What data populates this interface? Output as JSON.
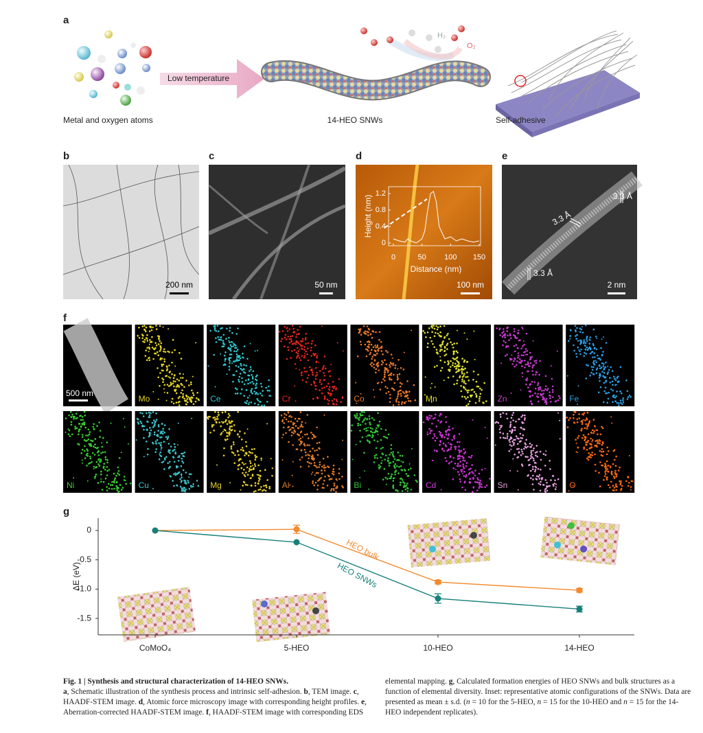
{
  "panel_labels": [
    "a",
    "b",
    "c",
    "d",
    "e",
    "f",
    "g"
  ],
  "panel_a": {
    "atoms_label": "Metal and oxygen atoms",
    "arrow_label": "Low temperature",
    "wire_label": "14-HEO SNWs",
    "adhesive_label": "Self-adhesive",
    "h2": "H₂",
    "o2": "O₂"
  },
  "scale_bars": {
    "b": "200 nm",
    "c": "50 nm",
    "d": "100 nm",
    "e": "2 nm",
    "f": "500 nm"
  },
  "panel_e_spacings": [
    "3.3 Å",
    "3.3 Å",
    "3.3 Å"
  ],
  "eds_maps": [
    {
      "label": "Mo",
      "color": "#e6d61e"
    },
    {
      "label": "Ce",
      "color": "#2ec8d0"
    },
    {
      "label": "Cr",
      "color": "#e8231e"
    },
    {
      "label": "Co",
      "color": "#e8782a"
    },
    {
      "label": "Mn",
      "color": "#e0e030"
    },
    {
      "label": "Zn",
      "color": "#c83ad0"
    },
    {
      "label": "Fe",
      "color": "#2aa0e6"
    },
    {
      "label": "Ni",
      "color": "#38d030"
    },
    {
      "label": "Cu",
      "color": "#3cc4cc"
    },
    {
      "label": "Mg",
      "color": "#e6d028"
    },
    {
      "label": "Al",
      "color": "#e07a26"
    },
    {
      "label": "Bi",
      "color": "#30c838"
    },
    {
      "label": "Cd",
      "color": "#d034d8"
    },
    {
      "label": "Sn",
      "color": "#e6a0e0"
    },
    {
      "label": "O",
      "color": "#ff6a10"
    }
  ],
  "chart_data": [
    {
      "type": "line",
      "x_label": "Distance (nm)",
      "y_label": "Height (nm)",
      "x": [
        0,
        10,
        20,
        25,
        30,
        40,
        50,
        55,
        60,
        65,
        70,
        75,
        80,
        90,
        100,
        110,
        120,
        130,
        140,
        150
      ],
      "series": [
        {
          "name": null,
          "color": "#ffffff",
          "values": [
            0.1,
            0.05,
            0.02,
            0.1,
            0.05,
            0,
            0.1,
            0.3,
            0.8,
            1.2,
            1.25,
            1.0,
            0.4,
            0.1,
            0.15,
            0.05,
            0.1,
            0.05,
            0.02,
            0.05
          ]
        }
      ],
      "xlim": [
        0,
        150
      ],
      "xticks": [
        0,
        50,
        100,
        150
      ],
      "ylim": [
        0,
        1.2
      ],
      "yticks": [
        0,
        0.4,
        0.8,
        1.2
      ]
    },
    {
      "type": "line",
      "y_label": "ΔE (eV)",
      "categories": [
        "CoMoO₄",
        "5-HEO",
        "10-HEO",
        "14-HEO"
      ],
      "series": [
        {
          "name": "HEO bulk",
          "color": "#f28a2e",
          "values": [
            0,
            0.02,
            -0.88,
            -1.02
          ],
          "errors": [
            null,
            0.07,
            0.03,
            0.03
          ]
        },
        {
          "name": "HEO SNWs",
          "color": "#17807a",
          "values": [
            0,
            -0.2,
            -1.16,
            -1.34
          ],
          "errors": [
            null,
            null,
            0.08,
            0.05
          ]
        }
      ],
      "ylim": [
        -1.78,
        0.21
      ],
      "yticks": [
        0,
        -0.5,
        {
          "value": -1,
          "label": "-1.0"
        },
        -1.5
      ]
    }
  ],
  "caption": {
    "segments": [
      {
        "text": "Fig. 1 | Synthesis and structural characterization of 14-HEO SNWs.",
        "bold": true
      },
      {
        "text": " "
      },
      {
        "text": "a",
        "bold": true
      },
      {
        "text": ", Schematic illustration of the synthesis process and intrinsic self-adhesion. "
      },
      {
        "text": "b",
        "bold": true
      },
      {
        "text": ", TEM image. "
      },
      {
        "text": "c",
        "bold": true
      },
      {
        "text": ", HAADF-STEM image. "
      },
      {
        "text": "d",
        "bold": true
      },
      {
        "text": ", Atomic force microscopy image with corresponding height profiles. "
      },
      {
        "text": "e",
        "bold": true
      },
      {
        "text": ", Aberration-corrected HAADF-STEM image. "
      },
      {
        "text": "f",
        "bold": true
      },
      {
        "text": ", HAADF-STEM image with corresponding EDS elemental mapping. "
      },
      {
        "text": "g",
        "bold": true
      },
      {
        "text": ", Calculated formation energies of HEO SNWs and bulk structures as a function of elemental diversity. Inset: representative atomic configurations of the SNWs. Data are presented as mean ± s.d. ("
      },
      {
        "text": "n",
        "italic": true
      },
      {
        "text": " = 10 for the 5-HEO, "
      },
      {
        "text": "n",
        "italic": true
      },
      {
        "text": " = 15 for the 10-HEO and "
      },
      {
        "text": "n",
        "italic": true
      },
      {
        "text": " = 15 for the 14-HEO independent replicates)."
      }
    ]
  }
}
